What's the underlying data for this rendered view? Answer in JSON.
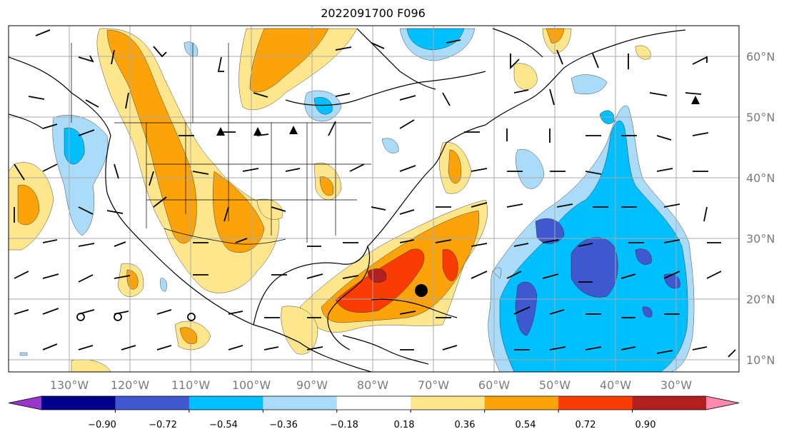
{
  "title": "2022091700 F096",
  "longitude_labels": [
    "130°W",
    "120°W",
    "110°W",
    "100°W",
    "90°W",
    "80°W",
    "70°W",
    "60°W",
    "50°W",
    "40°W",
    "30°W"
  ],
  "latitude_labels": [
    "60°N",
    "50°N",
    "40°N",
    "30°N",
    "20°N",
    "10°N"
  ],
  "colorbar": {
    "ticks": [
      "−0.90",
      "−0.72",
      "−0.54",
      "−0.36",
      "−0.18",
      "0.18",
      "0.36",
      "0.54",
      "0.72",
      "0.90"
    ],
    "colors": [
      "#9a35c9",
      "#00008b",
      "#3f58cf",
      "#00bfff",
      "#aadcfa",
      "#ffffff",
      "#fde68c",
      "#fca30a",
      "#f83c03",
      "#b21f1f",
      "#ff88b0"
    ]
  },
  "field_colors": {
    "neg1": "#aadcfa",
    "neg2": "#00bfff",
    "neg3": "#3f58cf",
    "pos1": "#fde68c",
    "pos2": "#fca30a",
    "pos3": "#f83c03",
    "pos4": "#b21f1f"
  },
  "markers": {
    "storm_center": "filled-circle",
    "open_circles": 3
  }
}
